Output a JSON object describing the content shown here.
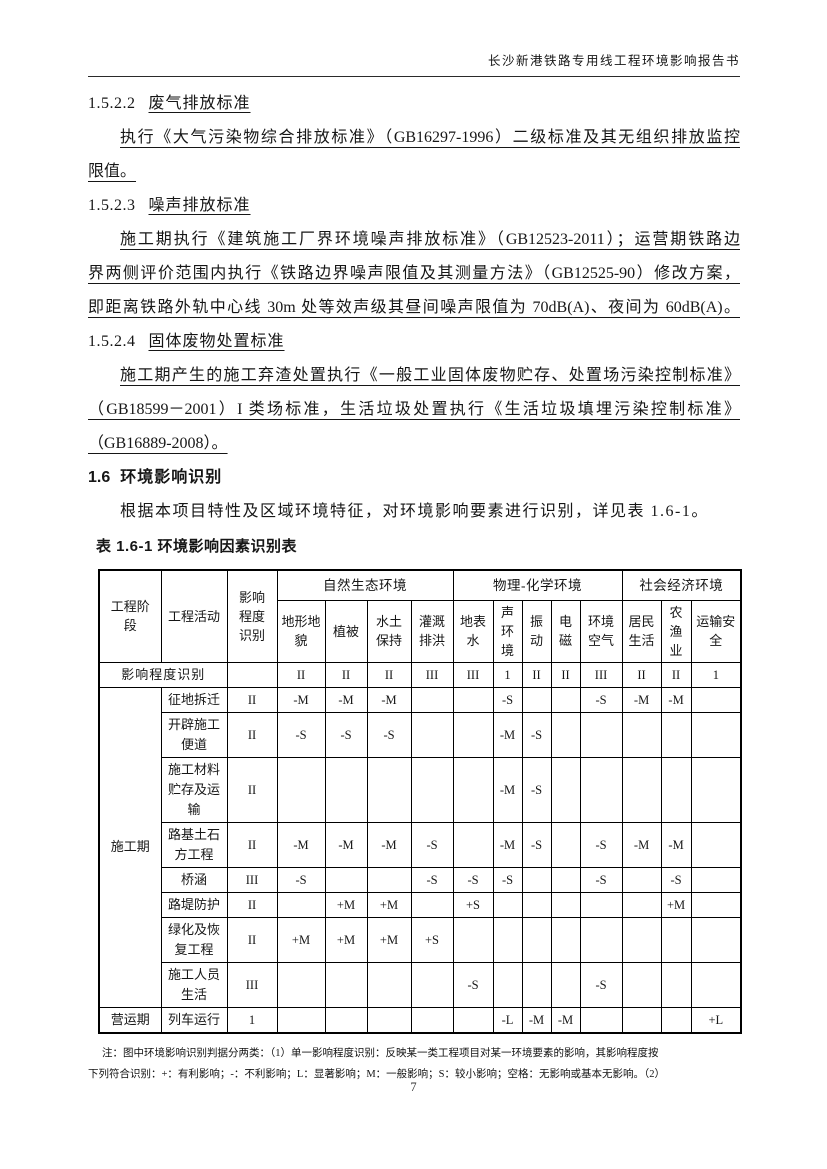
{
  "header": {
    "title": "长沙新港铁路专用线工程环境影响报告书"
  },
  "theme": {
    "ink": "#161616",
    "paper": "#ffffff",
    "border": "#000000"
  },
  "sections": [
    {
      "number": "1.5.2.2",
      "title": "废气排放标准",
      "lines": [
        "执行《大气污染物综合排放标准》（GB16297-1996）二级标准及其无组织排放监控",
        "限值。"
      ]
    },
    {
      "number": "1.5.2.3",
      "title": "噪声排放标准",
      "lines": [
        "施工期执行《建筑施工厂界环境噪声排放标准》（GB12523-2011）；运营期铁路边",
        "界两侧评价范围内执行《铁路边界噪声限值及其测量方法》（GB12525-90）修改方案，",
        "即距离铁路外轨中心线 30m 处等效声级其昼间噪声限值为 70dB(A)、夜间为 60dB(A)。"
      ]
    },
    {
      "number": "1.5.2.4",
      "title": "固体废物处置标准",
      "lines": [
        "施工期产生的施工弃渣处置执行《一般工业固体废物贮存、处置场污染控制标准》",
        "（GB18599－2001）I 类场标准，生活垃圾处置执行《生活垃圾填埋污染控制标准》",
        "（GB16889-2008）。"
      ]
    }
  ],
  "section_1_6": {
    "number": "1.6",
    "title": "环境影响识别",
    "paragraph": "根据本项目特性及区域环境特征，对环境影响要素进行识别，详见表 1.6-1。"
  },
  "table": {
    "caption": "表 1.6-1 环境影响因素识别表",
    "corner_headers": [
      "工程阶段",
      "工程活动",
      "影响程度识别"
    ],
    "groups": [
      {
        "label": "自然生态环境",
        "span": 4
      },
      {
        "label": "物理-化学环境",
        "span": 5
      },
      {
        "label": "社会经济环境",
        "span": 3
      }
    ],
    "columns": [
      "地形地貌",
      "植被",
      "水土保持",
      "灌溉排洪",
      "地表水",
      "声环境",
      "振动",
      "电磁",
      "环境空气",
      "居民生活",
      "农渔业",
      "运输安全"
    ],
    "degree_row": {
      "label": "影响程度识别",
      "values": [
        "II",
        "II",
        "II",
        "III",
        "III",
        "1",
        "II",
        "II",
        "III",
        "II",
        "II",
        "1"
      ]
    },
    "stages": [
      {
        "label": "施工期",
        "span": 8
      },
      {
        "label": "营运期",
        "span": 1
      }
    ],
    "rows": [
      {
        "activity": "征地拆迁",
        "degree": "II",
        "values": [
          "-M",
          "-M",
          "-M",
          "",
          "",
          "-S",
          "",
          "",
          "-S",
          "-M",
          "-M",
          ""
        ]
      },
      {
        "activity": "开辟施工便道",
        "degree": "II",
        "values": [
          "-S",
          "-S",
          "-S",
          "",
          "",
          "-M",
          "-S",
          "",
          "",
          "",
          "",
          ""
        ]
      },
      {
        "activity": "施工材料贮存及运输",
        "degree": "II",
        "values": [
          "",
          "",
          "",
          "",
          "",
          "-M",
          "-S",
          "",
          "",
          "",
          "",
          ""
        ]
      },
      {
        "activity": "路基土石方工程",
        "degree": "II",
        "values": [
          "-M",
          "-M",
          "-M",
          "-S",
          "",
          "-M",
          "-S",
          "",
          "-S",
          "-M",
          "-M",
          ""
        ]
      },
      {
        "activity": "桥涵",
        "degree": "III",
        "values": [
          "-S",
          "",
          "",
          "-S",
          "-S",
          "-S",
          "",
          "",
          "-S",
          "",
          "-S",
          ""
        ]
      },
      {
        "activity": "路堤防护",
        "degree": "II",
        "values": [
          "",
          "+M",
          "+M",
          "",
          "+S",
          "",
          "",
          "",
          "",
          "",
          "+M",
          ""
        ]
      },
      {
        "activity": "绿化及恢复工程",
        "degree": "II",
        "values": [
          "+M",
          "+M",
          "+M",
          "+S",
          "",
          "",
          "",
          "",
          "",
          "",
          "",
          ""
        ]
      },
      {
        "activity": "施工人员生活",
        "degree": "III",
        "values": [
          "",
          "",
          "",
          "",
          "-S",
          "",
          "",
          "",
          "-S",
          "",
          "",
          ""
        ]
      },
      {
        "activity": "列车运行",
        "degree": "1",
        "values": [
          "",
          "",
          "",
          "",
          "",
          "-L",
          "-M",
          "-M",
          "",
          "",
          "",
          "+L"
        ]
      }
    ]
  },
  "footnote": {
    "lines": [
      "注：图中环境影响识别判据分两类：（1）单一影响程度识别：反映某一类工程项目对某一环境要素的影响，其影响程度按",
      "下列符合识别：+：有利影响；-：不利影响；L：显著影响；M：一般影响；S：较小影响；空格：无影响或基本无影响。（2）"
    ]
  },
  "footer": {
    "page_number": "7"
  }
}
